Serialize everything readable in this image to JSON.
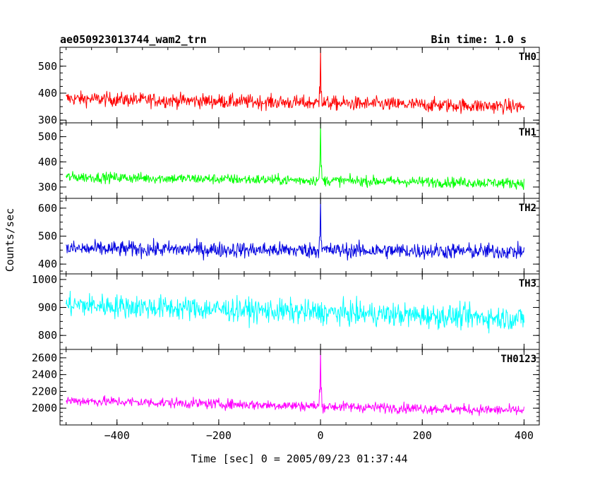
{
  "chart_data": {
    "type": "line",
    "title": "ae050923013744_wam2_trn",
    "bin_time": "Bin time: 1.0 s",
    "xlabel": "Time [sec] 0 = 2005/09/23 01:37:44",
    "ylabel": "Counts/sec",
    "xlim": [
      -512,
      430
    ],
    "x_ticks": [
      -400,
      -200,
      0,
      200,
      400
    ],
    "x_tick_labels": [
      "−400",
      "−200",
      "0",
      "200",
      "400"
    ],
    "panels": [
      {
        "name": "TH0",
        "color": "#ff0000",
        "ylim": [
          290,
          570
        ],
        "y_ticks": [
          300,
          400,
          500
        ],
        "y_tick_labels": [
          "300",
          "400",
          "500"
        ],
        "x_range": [
          -500,
          400
        ],
        "baseline_start": 380,
        "baseline_end": 350,
        "noise_amplitude": 28,
        "peak": {
          "x": 0,
          "y": 570
        }
      },
      {
        "name": "TH1",
        "color": "#00ff00",
        "ylim": [
          255,
          555
        ],
        "y_ticks": [
          300,
          400,
          500
        ],
        "y_tick_labels": [
          "300",
          "400",
          "500"
        ],
        "x_range": [
          -500,
          400
        ],
        "baseline_start": 340,
        "baseline_end": 315,
        "noise_amplitude": 22,
        "peak": {
          "x": 0,
          "y": 555
        }
      },
      {
        "name": "TH2",
        "color": "#0000e0",
        "ylim": [
          365,
          635
        ],
        "y_ticks": [
          400,
          500,
          600
        ],
        "y_tick_labels": [
          "400",
          "500",
          "600"
        ],
        "x_range": [
          -500,
          400
        ],
        "baseline_start": 455,
        "baseline_end": 445,
        "noise_amplitude": 30,
        "peak": {
          "x": 0,
          "y": 640
        }
      },
      {
        "name": "TH3",
        "color": "#00ffff",
        "ylim": [
          750,
          1020
        ],
        "y_ticks": [
          800,
          900,
          1000
        ],
        "y_tick_labels": [
          "800",
          "900",
          "1000"
        ],
        "x_range": [
          -500,
          400
        ],
        "baseline_start": 910,
        "baseline_end": 860,
        "noise_amplitude": 45,
        "peak": null
      },
      {
        "name": "TH0123",
        "color": "#ff00ff",
        "ylim": [
          1800,
          2700
        ],
        "y_ticks": [
          2000,
          2200,
          2400,
          2600
        ],
        "y_tick_labels": [
          "2000",
          "2200",
          "2400",
          "2600"
        ],
        "x_range": [
          -500,
          400
        ],
        "baseline_start": 2090,
        "baseline_end": 1970,
        "noise_amplitude": 65,
        "peak": {
          "x": 0,
          "y": 2700
        }
      }
    ]
  }
}
